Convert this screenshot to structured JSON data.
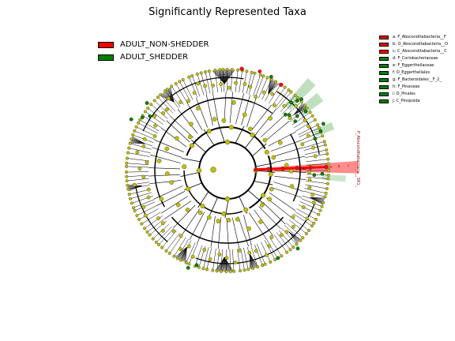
{
  "chart_data": {
    "type": "cladogram",
    "title": "Significantly Represented Taxa",
    "classes": [
      {
        "name": "ADULT_NON-SHEDDER",
        "color": "#ff0000"
      },
      {
        "name": "ADULT_SHEDDER",
        "color": "#008000"
      }
    ],
    "node_color": "#c0c000",
    "biomarkers": [
      {
        "key": "a",
        "label": "a: F_Absconditabacteria__F",
        "class": "ADULT_NON-SHEDDER",
        "color": "#ff0000"
      },
      {
        "key": "b",
        "label": "b: O_Absconditabacteria__O",
        "class": "ADULT_NON-SHEDDER",
        "color": "#ff0000"
      },
      {
        "key": "c",
        "label": "c: C_Absconditabacteria__C",
        "class": "ADULT_NON-SHEDDER",
        "color": "#ff0000"
      },
      {
        "key": "d",
        "label": "d: F_Coriobacteriaceae",
        "class": "ADULT_SHEDDER",
        "color": "#008000"
      },
      {
        "key": "e",
        "label": "e: F_Eggerthellaceae",
        "class": "ADULT_SHEDDER",
        "color": "#008000"
      },
      {
        "key": "f",
        "label": "f: O_Eggerthellales",
        "class": "ADULT_SHEDDER",
        "color": "#008000"
      },
      {
        "key": "g",
        "label": "g: F_Bacteroidales__F_2_",
        "class": "ADULT_SHEDDER",
        "color": "#008000"
      },
      {
        "key": "h",
        "label": "h: F_Pinaceae",
        "class": "ADULT_SHEDDER",
        "color": "#008000"
      },
      {
        "key": "i",
        "label": "i: O_Pinales",
        "class": "ADULT_SHEDDER",
        "color": "#008000"
      },
      {
        "key": "j",
        "label": "j: C_Pinopsida",
        "class": "ADULT_SHEDDER",
        "color": "#008000"
      }
    ],
    "clade_label": "P_Absconditabacteria__SR1_",
    "wedge_letters": [
      "c",
      "b",
      "a"
    ],
    "green_wedges": [
      "d",
      "e",
      "f",
      "g",
      "h",
      "i",
      "j"
    ]
  }
}
